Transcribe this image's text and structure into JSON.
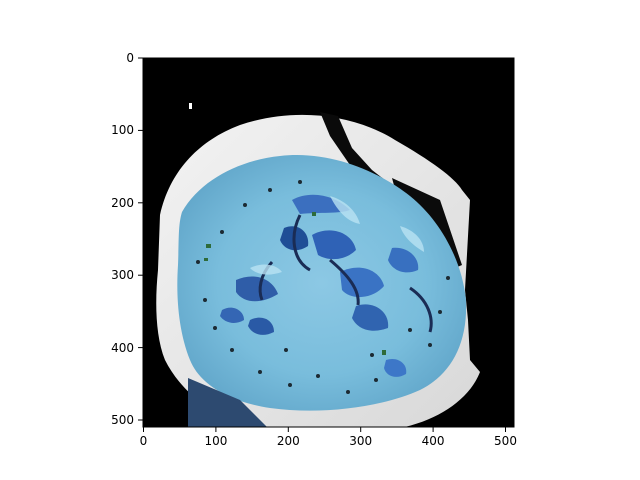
{
  "figure": {
    "content": "image",
    "colormap_note": "",
    "axes_frame_color": "#000000",
    "background_color": "#000000",
    "x_ticks": [
      "0",
      "100",
      "200",
      "300",
      "400",
      "500"
    ],
    "y_ticks": [
      "0",
      "100",
      "200",
      "300",
      "400",
      "500"
    ],
    "x_range": [
      0,
      512
    ],
    "y_range": [
      512,
      0
    ]
  }
}
